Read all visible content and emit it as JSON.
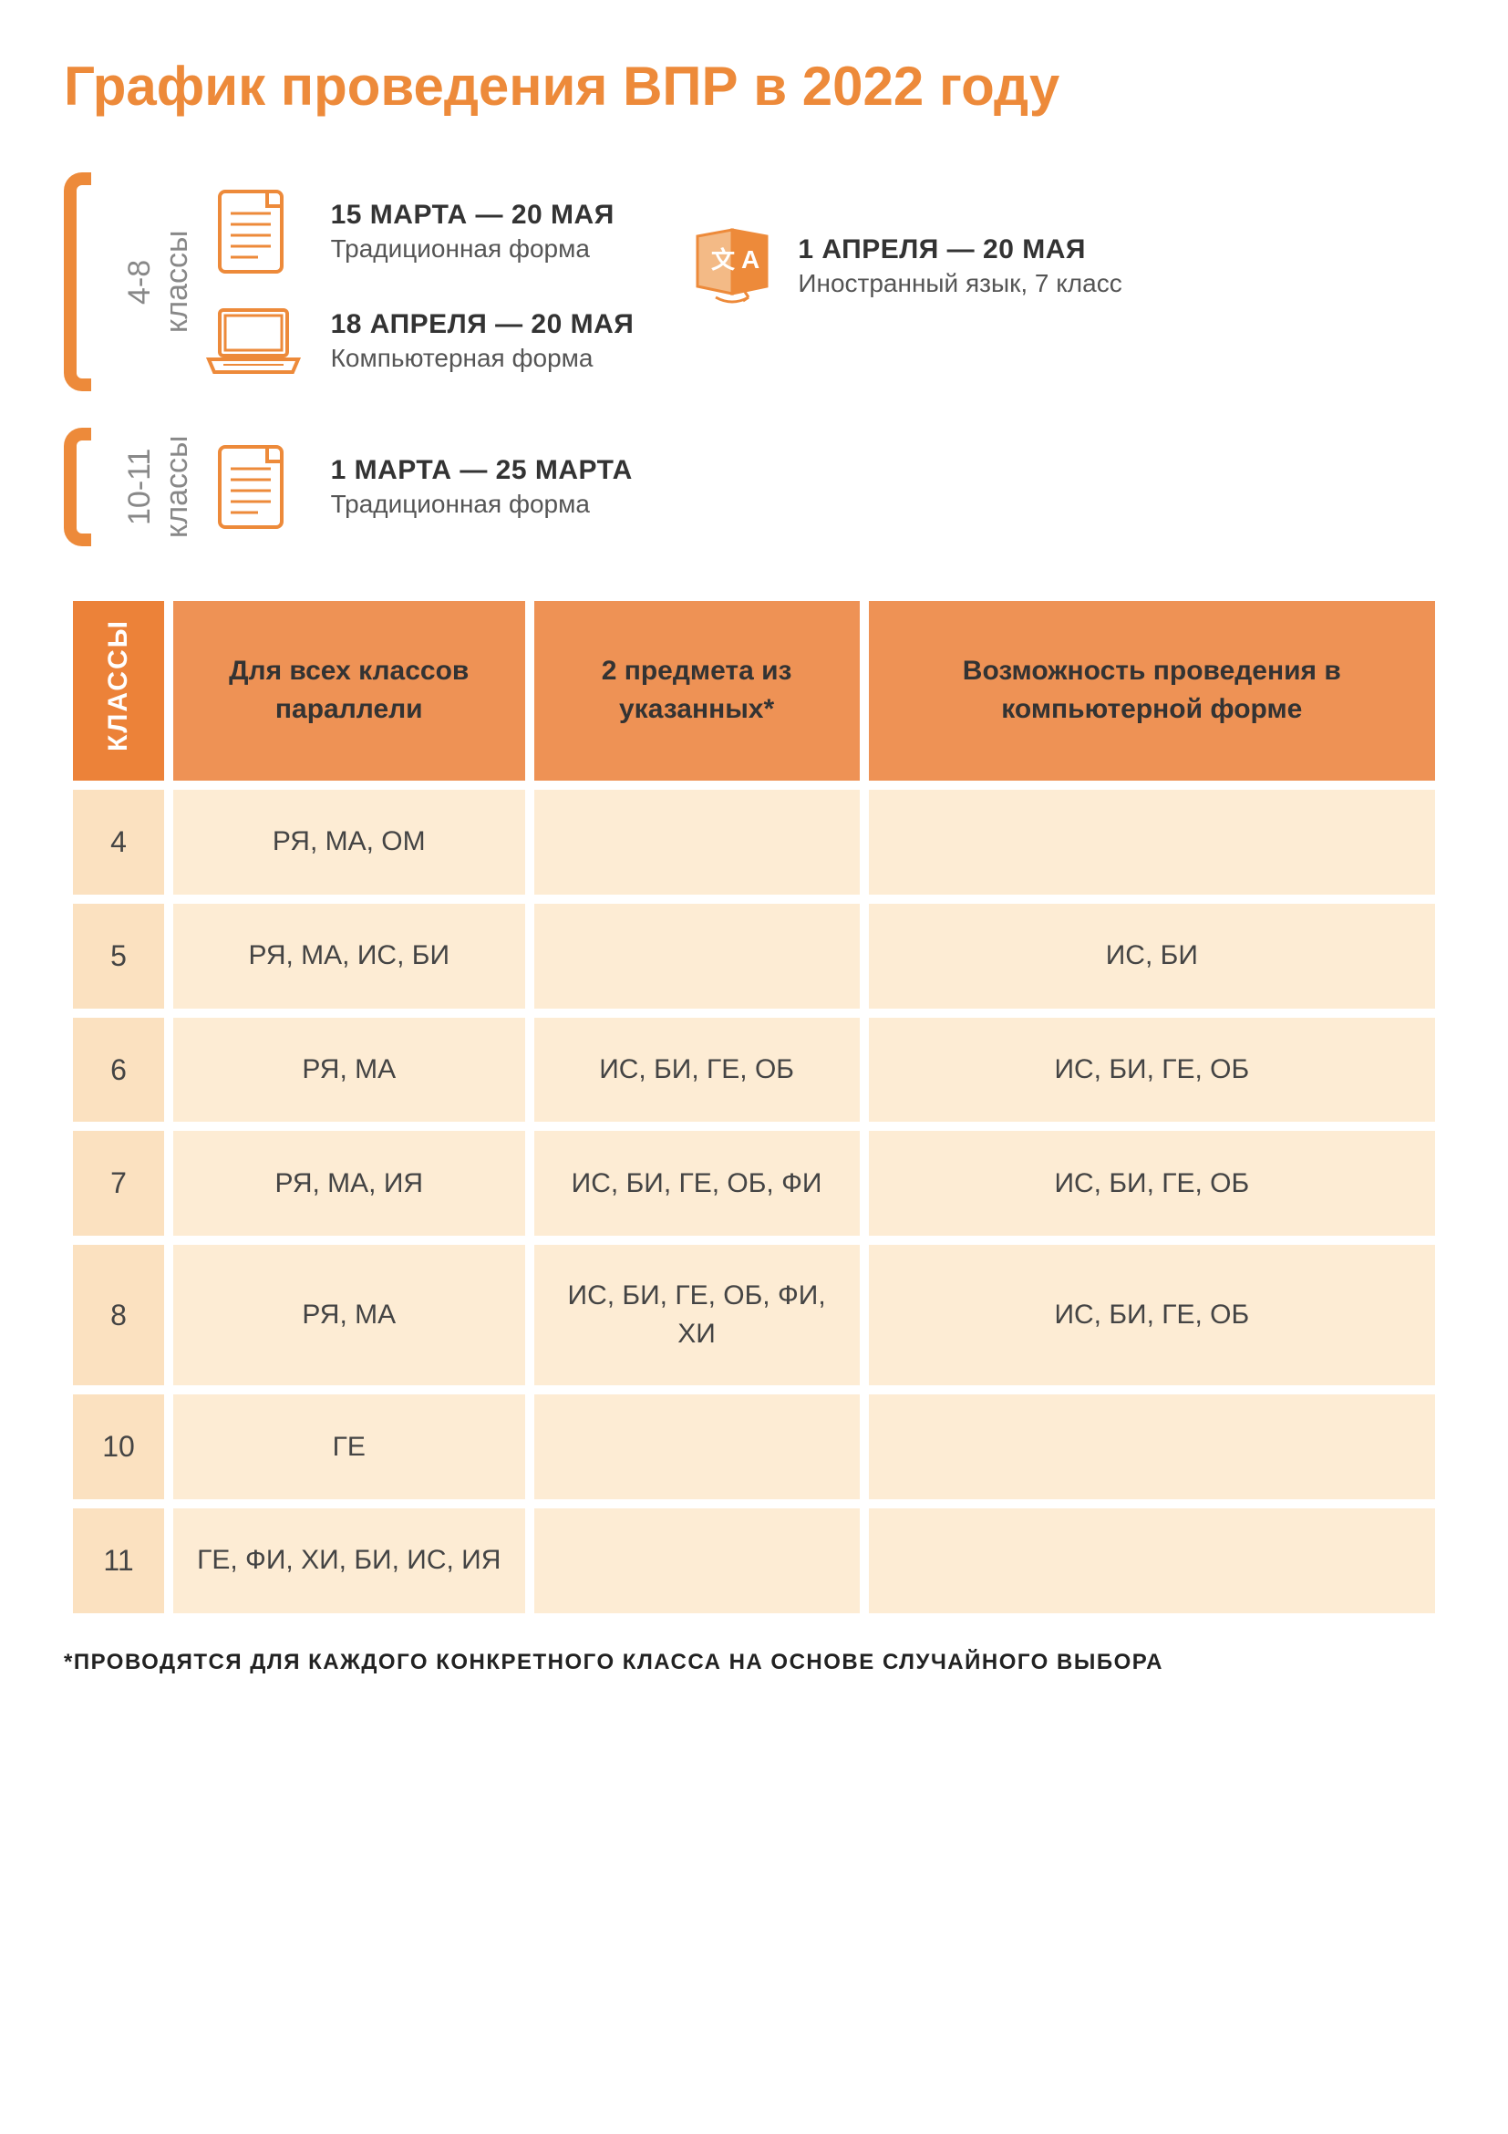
{
  "colors": {
    "accent": "#ed8a3a",
    "header_bg": "#ee9255",
    "header_dark": "#ec8239",
    "cell_bg": "#fdecd4",
    "cell_klass_bg": "#fbe1c0",
    "text": "#3a3a3a",
    "muted": "#888"
  },
  "title": "График проведения ВПР в 2022 году",
  "groups": {
    "g48": {
      "grades": "4-8",
      "klassy": "классы",
      "items": [
        {
          "icon": "doc",
          "dates": "15 МАРТА — 20 МАЯ",
          "form": "Традиционная форма"
        },
        {
          "icon": "laptop",
          "dates": "18 АПРЕЛЯ — 20 МАЯ",
          "form": "Компьютерная форма"
        }
      ]
    },
    "side": {
      "icon": "lang",
      "dates": "1 АПРЕЛЯ — 20 МАЯ",
      "form": "Иностранный язык, 7 класс"
    },
    "g1011": {
      "grades": "10-11",
      "klassy": "классы",
      "items": [
        {
          "icon": "doc",
          "dates": "1 МАРТА — 25 МАРТА",
          "form": "Традиционная форма"
        }
      ]
    }
  },
  "table": {
    "header_rot": "КЛАССЫ",
    "columns": [
      "Для всех классов параллели",
      "2 предмета из указанных*",
      "Возможность проведения в компьютерной форме"
    ],
    "rows": [
      {
        "klass": "4",
        "c1": "РЯ, МА, ОМ",
        "c2": "",
        "c3": ""
      },
      {
        "klass": "5",
        "c1": "РЯ, МА, ИС, БИ",
        "c2": "",
        "c3": "ИС, БИ"
      },
      {
        "klass": "6",
        "c1": "РЯ, МА",
        "c2": "ИС, БИ, ГЕ, ОБ",
        "c3": "ИС, БИ, ГЕ, ОБ"
      },
      {
        "klass": "7",
        "c1": "РЯ, МА, ИЯ",
        "c2": "ИС, БИ, ГЕ, ОБ, ФИ",
        "c3": "ИС, БИ, ГЕ, ОБ"
      },
      {
        "klass": "8",
        "c1": "РЯ, МА",
        "c2": "ИС, БИ, ГЕ, ОБ, ФИ, ХИ",
        "c3": "ИС, БИ, ГЕ, ОБ"
      },
      {
        "klass": "10",
        "c1": "ГЕ",
        "c2": "",
        "c3": ""
      },
      {
        "klass": "11",
        "c1": "ГЕ, ФИ, ХИ, БИ, ИС, ИЯ",
        "c2": "",
        "c3": ""
      }
    ]
  },
  "footnote": "*ПРОВОДЯТСЯ ДЛЯ КАЖДОГО КОНКРЕТНОГО КЛАССА НА ОСНОВЕ СЛУЧАЙНОГО ВЫБОРА"
}
